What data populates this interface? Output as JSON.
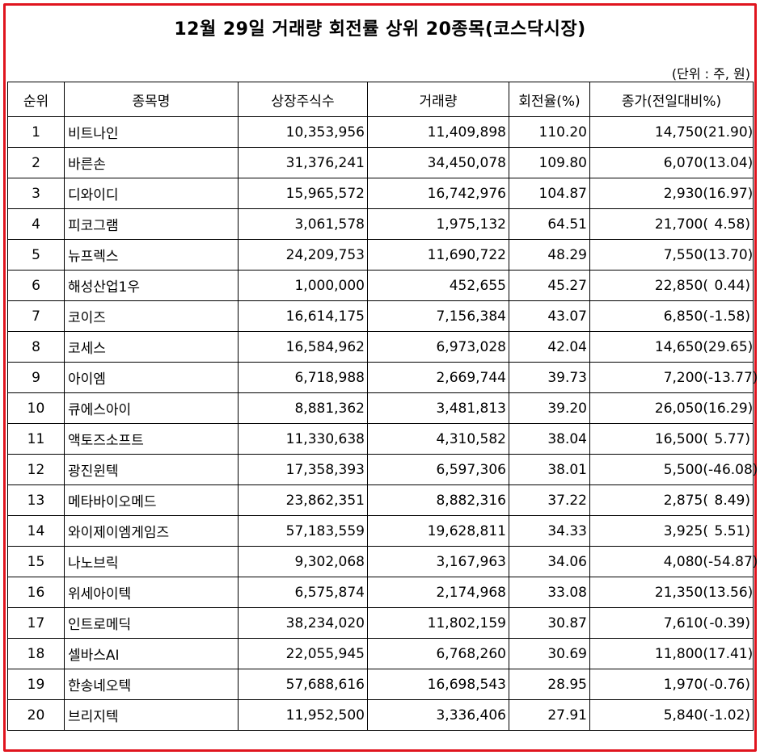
{
  "title": "12월 29일 거래량 회전률 상위 20종목(코스닥시장)",
  "unit_note": "(단위 : 주, 원)",
  "columns": [
    "순위",
    "종목명",
    "상장주식수",
    "거래량",
    "회전율(%)",
    "종가(전일대비%)"
  ],
  "rows": [
    {
      "rank": "1",
      "name": "비트나인",
      "listed": "10,353,956",
      "volume": "11,409,898",
      "turnover": "110.20",
      "close": "14,750(",
      "change": "21.90)"
    },
    {
      "rank": "2",
      "name": "바른손",
      "listed": "31,376,241",
      "volume": "34,450,078",
      "turnover": "109.80",
      "close": "6,070(",
      "change": "13.04)"
    },
    {
      "rank": "3",
      "name": "디와이디",
      "listed": "15,965,572",
      "volume": "16,742,976",
      "turnover": "104.87",
      "close": "2,930(",
      "change": "16.97)"
    },
    {
      "rank": "4",
      "name": "피코그램",
      "listed": "3,061,578",
      "volume": "1,975,132",
      "turnover": "64.51",
      "close": "21,700(",
      "change": "4.58)"
    },
    {
      "rank": "5",
      "name": "뉴프렉스",
      "listed": "24,209,753",
      "volume": "11,690,722",
      "turnover": "48.29",
      "close": "7,550(",
      "change": "13.70)"
    },
    {
      "rank": "6",
      "name": "해성산업1우",
      "listed": "1,000,000",
      "volume": "452,655",
      "turnover": "45.27",
      "close": "22,850(",
      "change": "0.44)"
    },
    {
      "rank": "7",
      "name": "코이즈",
      "listed": "16,614,175",
      "volume": "7,156,384",
      "turnover": "43.07",
      "close": "6,850(",
      "change": "-1.58)"
    },
    {
      "rank": "8",
      "name": "코세스",
      "listed": "16,584,962",
      "volume": "6,973,028",
      "turnover": "42.04",
      "close": "14,650(",
      "change": "29.65)"
    },
    {
      "rank": "9",
      "name": "아이엠",
      "listed": "6,718,988",
      "volume": "2,669,744",
      "turnover": "39.73",
      "close": "7,200(",
      "change": "-13.77)"
    },
    {
      "rank": "10",
      "name": "큐에스아이",
      "listed": "8,881,362",
      "volume": "3,481,813",
      "turnover": "39.20",
      "close": "26,050(",
      "change": "16.29)"
    },
    {
      "rank": "11",
      "name": "액토즈소프트",
      "listed": "11,330,638",
      "volume": "4,310,582",
      "turnover": "38.04",
      "close": "16,500(",
      "change": "5.77)"
    },
    {
      "rank": "12",
      "name": "광진윈텍",
      "listed": "17,358,393",
      "volume": "6,597,306",
      "turnover": "38.01",
      "close": "5,500(",
      "change": "-46.08)"
    },
    {
      "rank": "13",
      "name": "메타바이오메드",
      "listed": "23,862,351",
      "volume": "8,882,316",
      "turnover": "37.22",
      "close": "2,875(",
      "change": "8.49)"
    },
    {
      "rank": "14",
      "name": "와이제이엠게임즈",
      "listed": "57,183,559",
      "volume": "19,628,811",
      "turnover": "34.33",
      "close": "3,925(",
      "change": "5.51)"
    },
    {
      "rank": "15",
      "name": "나노브릭",
      "listed": "9,302,068",
      "volume": "3,167,963",
      "turnover": "34.06",
      "close": "4,080(",
      "change": "-54.87)"
    },
    {
      "rank": "16",
      "name": "위세아이텍",
      "listed": "6,575,874",
      "volume": "2,174,968",
      "turnover": "33.08",
      "close": "21,350(",
      "change": "13.56)"
    },
    {
      "rank": "17",
      "name": "인트로메딕",
      "listed": "38,234,020",
      "volume": "11,802,159",
      "turnover": "30.87",
      "close": "7,610(",
      "change": "-0.39)"
    },
    {
      "rank": "18",
      "name": "셀바스AI",
      "listed": "22,055,945",
      "volume": "6,768,260",
      "turnover": "30.69",
      "close": "11,800(",
      "change": "17.41)"
    },
    {
      "rank": "19",
      "name": "한송네오텍",
      "listed": "57,688,616",
      "volume": "16,698,543",
      "turnover": "28.95",
      "close": "1,970(",
      "change": "-0.76)"
    },
    {
      "rank": "20",
      "name": "브리지텍",
      "listed": "11,952,500",
      "volume": "3,336,406",
      "turnover": "27.91",
      "close": "5,840(",
      "change": "-1.02)"
    }
  ],
  "colors": {
    "frame": "#e0141e"
  }
}
